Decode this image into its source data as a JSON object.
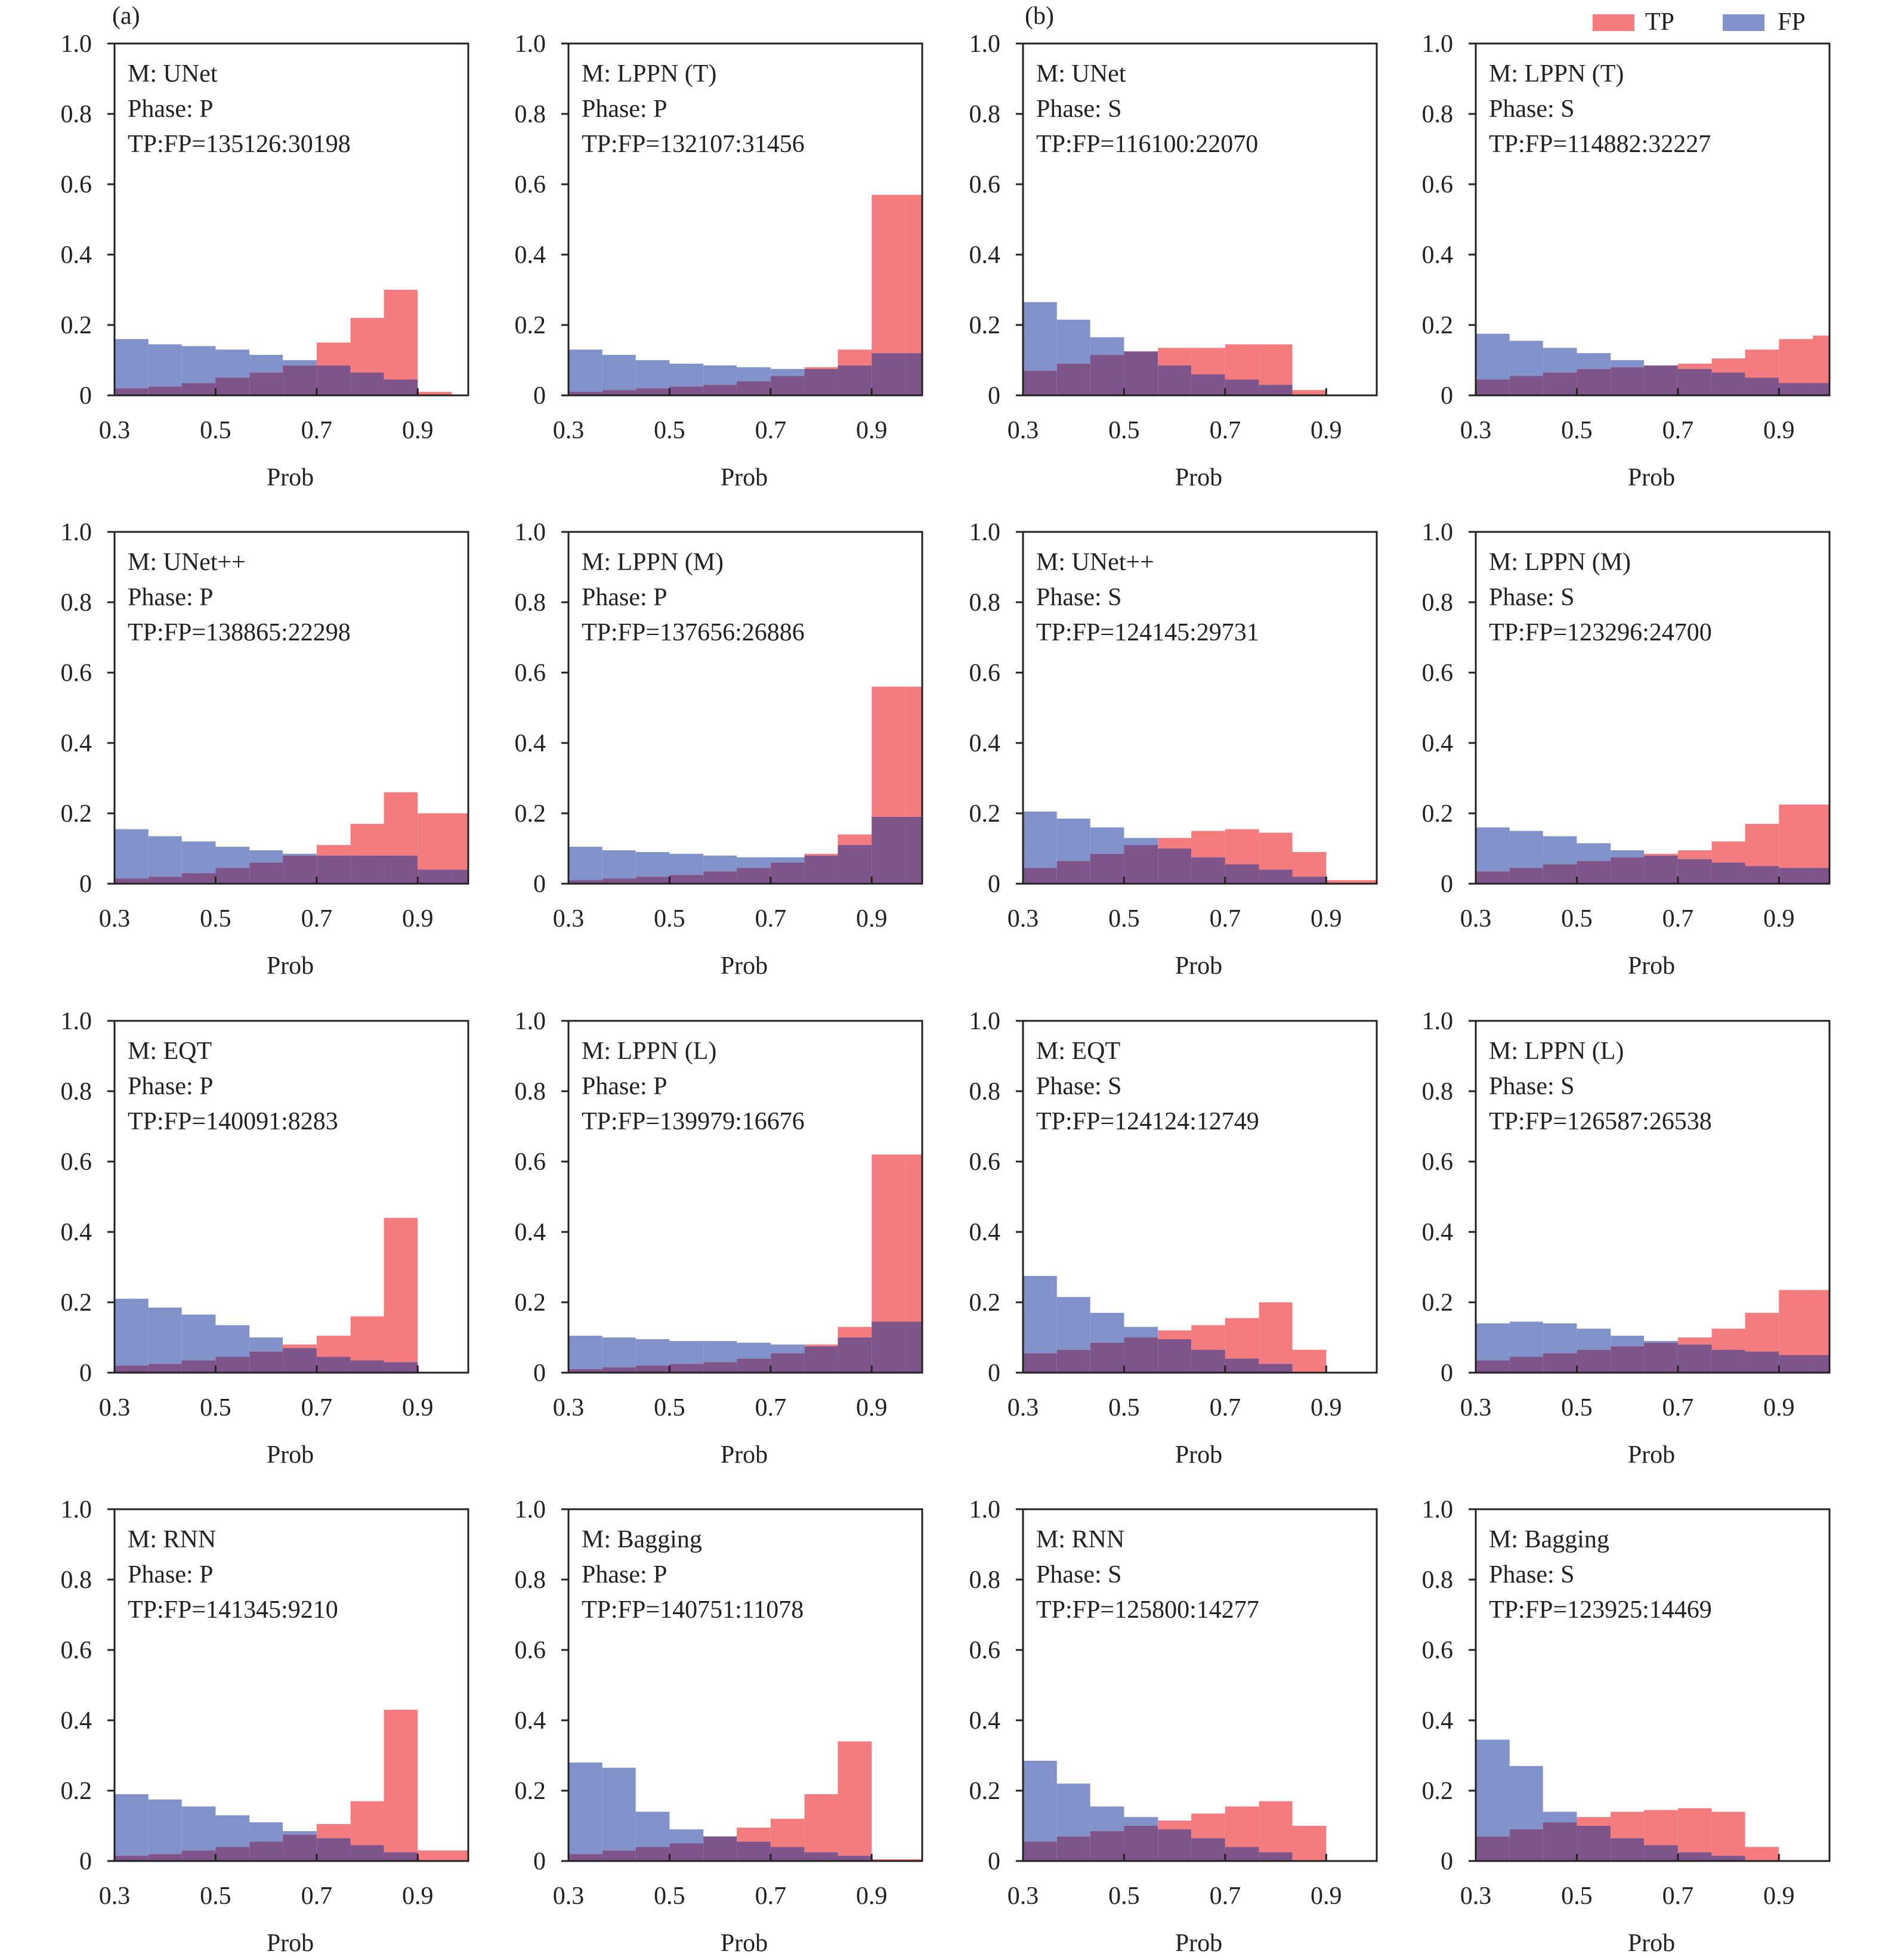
{
  "figure": {
    "label_a": "(a)",
    "label_b": "(b)",
    "legend": {
      "tp_label": "TP",
      "fp_label": "FP",
      "placement": "top-right"
    }
  },
  "colors": {
    "tp": "#f47c7f",
    "fp": "#8191c9",
    "overlap": "#7f5489"
  },
  "axis": {
    "xlabel": "Prob",
    "xlim": [
      0.3,
      1.0
    ],
    "ylim": [
      0,
      1.0
    ],
    "xticks": [
      "0.3",
      "0.5",
      "0.7",
      "0.9"
    ],
    "yticks": [
      "0",
      "0.2",
      "0.4",
      "0.6",
      "0.8",
      "1.0"
    ],
    "grid": false
  },
  "chart_data": [
    {
      "type": "bar",
      "model": "M: UNet",
      "phase": "Phase: P",
      "ratio": "TP:FP=135126:30198",
      "bins": [
        0.3,
        0.367,
        0.433,
        0.5,
        0.567,
        0.633,
        0.7,
        0.767,
        0.833,
        0.9,
        0.967,
        1.0
      ],
      "tp": [
        0.02,
        0.025,
        0.035,
        0.05,
        0.065,
        0.085,
        0.15,
        0.22,
        0.3,
        0.01,
        0
      ],
      "fp": [
        0.16,
        0.145,
        0.14,
        0.13,
        0.115,
        0.1,
        0.085,
        0.065,
        0.045,
        0,
        0
      ]
    },
    {
      "type": "bar",
      "model": "M: LPPN (T)",
      "phase": "Phase: P",
      "ratio": "TP:FP=132107:31456",
      "bins": [
        0.3,
        0.367,
        0.433,
        0.5,
        0.567,
        0.633,
        0.7,
        0.767,
        0.833,
        0.9,
        0.967,
        1.0
      ],
      "tp": [
        0.01,
        0.015,
        0.02,
        0.025,
        0.03,
        0.04,
        0.055,
        0.08,
        0.13,
        0.57,
        0.57
      ],
      "fp": [
        0.13,
        0.115,
        0.1,
        0.09,
        0.085,
        0.08,
        0.075,
        0.075,
        0.085,
        0.12,
        0.12
      ]
    },
    {
      "type": "bar",
      "model": "M: UNet",
      "phase": "Phase: S",
      "ratio": "TP:FP=116100:22070",
      "bins": [
        0.3,
        0.367,
        0.433,
        0.5,
        0.567,
        0.633,
        0.7,
        0.767,
        0.833,
        0.9,
        0.967,
        1.0
      ],
      "tp": [
        0.07,
        0.09,
        0.115,
        0.125,
        0.135,
        0.135,
        0.145,
        0.145,
        0.015,
        0,
        0
      ],
      "fp": [
        0.265,
        0.215,
        0.165,
        0.125,
        0.085,
        0.06,
        0.045,
        0.03,
        0,
        0,
        0
      ]
    },
    {
      "type": "bar",
      "model": "M: LPPN (T)",
      "phase": "Phase: S",
      "ratio": "TP:FP=114882:32227",
      "bins": [
        0.3,
        0.367,
        0.433,
        0.5,
        0.567,
        0.633,
        0.7,
        0.767,
        0.833,
        0.9,
        0.967,
        1.0
      ],
      "tp": [
        0.045,
        0.055,
        0.065,
        0.075,
        0.08,
        0.085,
        0.09,
        0.105,
        0.13,
        0.16,
        0.17
      ],
      "fp": [
        0.175,
        0.155,
        0.135,
        0.12,
        0.1,
        0.085,
        0.075,
        0.065,
        0.05,
        0.035,
        0.035
      ]
    },
    {
      "type": "bar",
      "model": "M: UNet++",
      "phase": "Phase: P",
      "ratio": "TP:FP=138865:22298",
      "bins": [
        0.3,
        0.367,
        0.433,
        0.5,
        0.567,
        0.633,
        0.7,
        0.767,
        0.833,
        0.9,
        0.967,
        1.0
      ],
      "tp": [
        0.015,
        0.02,
        0.03,
        0.045,
        0.06,
        0.08,
        0.11,
        0.17,
        0.26,
        0.2,
        0.2
      ],
      "fp": [
        0.155,
        0.135,
        0.12,
        0.105,
        0.095,
        0.085,
        0.08,
        0.08,
        0.08,
        0.04,
        0.04
      ]
    },
    {
      "type": "bar",
      "model": "M: LPPN (M)",
      "phase": "Phase: P",
      "ratio": "TP:FP=137656:26886",
      "bins": [
        0.3,
        0.367,
        0.433,
        0.5,
        0.567,
        0.633,
        0.7,
        0.767,
        0.833,
        0.9,
        0.967,
        1.0
      ],
      "tp": [
        0.01,
        0.015,
        0.02,
        0.025,
        0.035,
        0.045,
        0.06,
        0.085,
        0.14,
        0.56,
        0.56
      ],
      "fp": [
        0.105,
        0.095,
        0.09,
        0.085,
        0.08,
        0.075,
        0.075,
        0.08,
        0.11,
        0.19,
        0.19
      ]
    },
    {
      "type": "bar",
      "model": "M: UNet++",
      "phase": "Phase: S",
      "ratio": "TP:FP=124145:29731",
      "bins": [
        0.3,
        0.367,
        0.433,
        0.5,
        0.567,
        0.633,
        0.7,
        0.767,
        0.833,
        0.9,
        0.967,
        1.0
      ],
      "tp": [
        0.045,
        0.065,
        0.085,
        0.11,
        0.13,
        0.15,
        0.155,
        0.145,
        0.09,
        0.01,
        0.01
      ],
      "fp": [
        0.205,
        0.185,
        0.16,
        0.13,
        0.1,
        0.075,
        0.055,
        0.04,
        0.02,
        0,
        0
      ]
    },
    {
      "type": "bar",
      "model": "M: LPPN (M)",
      "phase": "Phase: S",
      "ratio": "TP:FP=123296:24700",
      "bins": [
        0.3,
        0.367,
        0.433,
        0.5,
        0.567,
        0.633,
        0.7,
        0.767,
        0.833,
        0.9,
        0.967,
        1.0
      ],
      "tp": [
        0.035,
        0.045,
        0.055,
        0.065,
        0.075,
        0.085,
        0.095,
        0.12,
        0.17,
        0.225,
        0.225
      ],
      "fp": [
        0.16,
        0.15,
        0.135,
        0.115,
        0.095,
        0.08,
        0.07,
        0.06,
        0.05,
        0.045,
        0.045
      ]
    },
    {
      "type": "bar",
      "model": "M: EQT",
      "phase": "Phase: P",
      "ratio": "TP:FP=140091:8283",
      "bins": [
        0.3,
        0.367,
        0.433,
        0.5,
        0.567,
        0.633,
        0.7,
        0.767,
        0.833,
        0.9,
        0.967,
        1.0
      ],
      "tp": [
        0.02,
        0.025,
        0.035,
        0.045,
        0.06,
        0.08,
        0.105,
        0.16,
        0.44,
        0,
        0
      ],
      "fp": [
        0.21,
        0.185,
        0.165,
        0.135,
        0.1,
        0.07,
        0.045,
        0.035,
        0.03,
        0,
        0
      ]
    },
    {
      "type": "bar",
      "model": "M: LPPN (L)",
      "phase": "Phase: P",
      "ratio": "TP:FP=139979:16676",
      "bins": [
        0.3,
        0.367,
        0.433,
        0.5,
        0.567,
        0.633,
        0.7,
        0.767,
        0.833,
        0.9,
        0.967,
        1.0
      ],
      "tp": [
        0.01,
        0.015,
        0.02,
        0.025,
        0.03,
        0.04,
        0.055,
        0.08,
        0.13,
        0.62,
        0.62
      ],
      "fp": [
        0.105,
        0.1,
        0.095,
        0.09,
        0.09,
        0.085,
        0.08,
        0.075,
        0.1,
        0.145,
        0.145
      ]
    },
    {
      "type": "bar",
      "model": "M: EQT",
      "phase": "Phase: S",
      "ratio": "TP:FP=124124:12749",
      "bins": [
        0.3,
        0.367,
        0.433,
        0.5,
        0.567,
        0.633,
        0.7,
        0.767,
        0.833,
        0.9,
        0.967,
        1.0
      ],
      "tp": [
        0.055,
        0.065,
        0.085,
        0.1,
        0.12,
        0.135,
        0.155,
        0.2,
        0.065,
        0,
        0
      ],
      "fp": [
        0.275,
        0.215,
        0.17,
        0.13,
        0.095,
        0.065,
        0.04,
        0.025,
        0,
        0,
        0
      ]
    },
    {
      "type": "bar",
      "model": "M: LPPN (L)",
      "phase": "Phase: S",
      "ratio": "TP:FP=126587:26538",
      "bins": [
        0.3,
        0.367,
        0.433,
        0.5,
        0.567,
        0.633,
        0.7,
        0.767,
        0.833,
        0.9,
        0.967,
        1.0
      ],
      "tp": [
        0.035,
        0.045,
        0.055,
        0.065,
        0.075,
        0.085,
        0.1,
        0.125,
        0.17,
        0.235,
        0.235
      ],
      "fp": [
        0.14,
        0.145,
        0.14,
        0.125,
        0.105,
        0.09,
        0.08,
        0.065,
        0.06,
        0.05,
        0.05
      ]
    },
    {
      "type": "bar",
      "model": "M: RNN",
      "phase": "Phase: P",
      "ratio": "TP:FP=141345:9210",
      "bins": [
        0.3,
        0.367,
        0.433,
        0.5,
        0.567,
        0.633,
        0.7,
        0.767,
        0.833,
        0.9,
        0.967,
        1.0
      ],
      "tp": [
        0.015,
        0.02,
        0.03,
        0.04,
        0.055,
        0.075,
        0.105,
        0.17,
        0.43,
        0.03,
        0.03
      ],
      "fp": [
        0.19,
        0.175,
        0.155,
        0.13,
        0.11,
        0.085,
        0.065,
        0.045,
        0.025,
        0,
        0
      ]
    },
    {
      "type": "bar",
      "model": "M: Bagging",
      "phase": "Phase: P",
      "ratio": "TP:FP=140751:11078",
      "bins": [
        0.3,
        0.367,
        0.433,
        0.5,
        0.567,
        0.633,
        0.7,
        0.767,
        0.833,
        0.9,
        0.967,
        1.0
      ],
      "tp": [
        0.02,
        0.03,
        0.04,
        0.05,
        0.07,
        0.095,
        0.12,
        0.19,
        0.34,
        0.005,
        0.005
      ],
      "fp": [
        0.28,
        0.265,
        0.14,
        0.09,
        0.07,
        0.055,
        0.04,
        0.025,
        0.015,
        0,
        0
      ]
    },
    {
      "type": "bar",
      "model": "M: RNN",
      "phase": "Phase: S",
      "ratio": "TP:FP=125800:14277",
      "bins": [
        0.3,
        0.367,
        0.433,
        0.5,
        0.567,
        0.633,
        0.7,
        0.767,
        0.833,
        0.9,
        0.967,
        1.0
      ],
      "tp": [
        0.055,
        0.07,
        0.085,
        0.1,
        0.115,
        0.135,
        0.155,
        0.17,
        0.1,
        0,
        0
      ],
      "fp": [
        0.285,
        0.22,
        0.155,
        0.125,
        0.09,
        0.065,
        0.04,
        0.025,
        0,
        0,
        0
      ]
    },
    {
      "type": "bar",
      "model": "M: Bagging",
      "phase": "Phase: S",
      "ratio": "TP:FP=123925:14469",
      "bins": [
        0.3,
        0.367,
        0.433,
        0.5,
        0.567,
        0.633,
        0.7,
        0.767,
        0.833,
        0.9,
        0.967,
        1.0
      ],
      "tp": [
        0.07,
        0.09,
        0.11,
        0.125,
        0.14,
        0.145,
        0.15,
        0.14,
        0.04,
        0,
        0
      ],
      "fp": [
        0.345,
        0.27,
        0.14,
        0.1,
        0.065,
        0.045,
        0.025,
        0.015,
        0,
        0,
        0
      ]
    }
  ]
}
